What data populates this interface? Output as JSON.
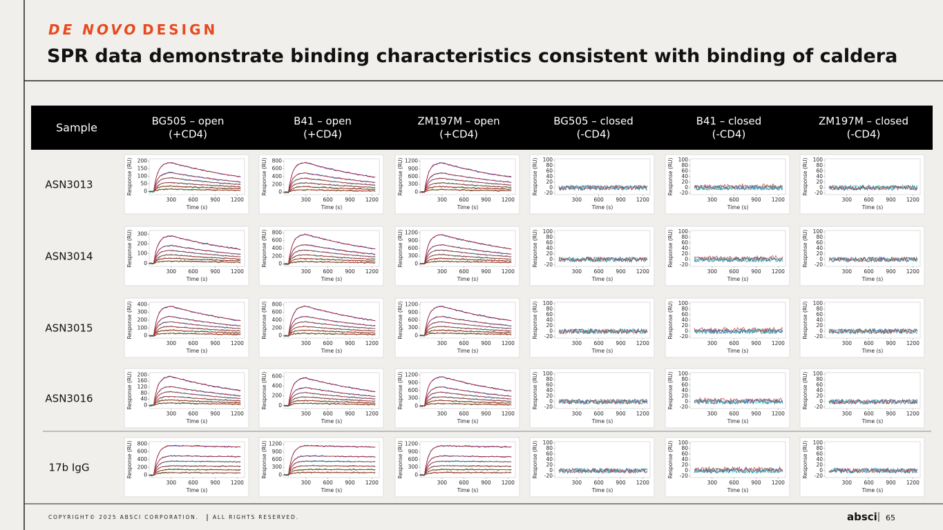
{
  "header": {
    "kicker_italic": "DE NOVO",
    "kicker": "DESIGN",
    "title": "SPR data demonstrate binding characteristics consistent with binding of caldera"
  },
  "table": {
    "corner": "Sample",
    "columns": [
      [
        "BG505 – open",
        "(+CD4)"
      ],
      [
        "B41 – open",
        "(+CD4)"
      ],
      [
        "ZM197M – open",
        "(+CD4)"
      ],
      [
        "BG505 – closed",
        "(-CD4)"
      ],
      [
        "B41 – closed",
        "(-CD4)"
      ],
      [
        "ZM197M – closed",
        "(-CD4)"
      ]
    ],
    "rows": [
      {
        "label": "ASN3013",
        "cells": [
          {
            "ylabel": "Response (RU)",
            "xlabel": "Time (s)",
            "ylim": [
              -20,
              215
            ],
            "yticks": [
              0,
              50,
              100,
              150,
              200
            ],
            "xlim": [
              0,
              1300
            ],
            "xticks": [
              300,
              600,
              900,
              1200
            ]
          },
          {
            "ylabel": "Response (RU)",
            "xlabel": "Time (s)",
            "ylim": [
              -60,
              860
            ],
            "yticks": [
              0,
              200,
              400,
              600,
              800
            ],
            "xlim": [
              0,
              1300
            ],
            "xticks": [
              300,
              600,
              900,
              1200
            ]
          },
          {
            "ylabel": "Response (RU)",
            "xlabel": "Time (s)",
            "ylim": [
              -100,
              1300
            ],
            "yticks": [
              0,
              300,
              600,
              900,
              1200
            ],
            "xlim": [
              0,
              1300
            ],
            "xticks": [
              300,
              600,
              900,
              1200
            ]
          },
          {
            "ylabel": "Response (RU)",
            "xlabel": "Time (s)",
            "ylim": [
              -25,
              105
            ],
            "yticks": [
              -20,
              0,
              20,
              40,
              60,
              80,
              100
            ],
            "xlim": [
              0,
              1300
            ],
            "xticks": [
              300,
              600,
              900,
              1200
            ]
          },
          {
            "ylabel": "Response (RU)",
            "xlabel": "Time (s)",
            "ylim": [
              -25,
              105
            ],
            "yticks": [
              -20,
              0,
              20,
              40,
              60,
              80,
              100
            ],
            "xlim": [
              0,
              1300
            ],
            "xticks": [
              300,
              600,
              900,
              1200
            ]
          },
          {
            "ylabel": "Response (RU)",
            "xlabel": "Time (s)",
            "ylim": [
              -25,
              105
            ],
            "yticks": [
              -20,
              0,
              20,
              40,
              60,
              80,
              100
            ],
            "xlim": [
              0,
              1300
            ],
            "xticks": [
              300,
              600,
              900,
              1200
            ]
          }
        ]
      },
      {
        "label": "ASN3014",
        "cells": [
          {
            "ylabel": "Response (RU)",
            "xlabel": "Time (s)",
            "ylim": [
              -30,
              340
            ],
            "yticks": [
              0,
              100,
              200,
              300
            ],
            "xlim": [
              0,
              1300
            ],
            "xticks": [
              300,
              600,
              900,
              1200
            ]
          },
          {
            "ylabel": "Response (RU)",
            "xlabel": "Time (s)",
            "ylim": [
              -60,
              860
            ],
            "yticks": [
              0,
              200,
              400,
              600,
              800
            ],
            "xlim": [
              0,
              1300
            ],
            "xticks": [
              300,
              600,
              900,
              1200
            ]
          },
          {
            "ylabel": "Response (RU)",
            "xlabel": "Time (s)",
            "ylim": [
              -100,
              1300
            ],
            "yticks": [
              0,
              300,
              600,
              900,
              1200
            ],
            "xlim": [
              0,
              1300
            ],
            "xticks": [
              300,
              600,
              900,
              1200
            ]
          },
          {
            "ylabel": "Response (RU)",
            "xlabel": "Time (s)",
            "ylim": [
              -25,
              105
            ],
            "yticks": [
              -20,
              0,
              20,
              40,
              60,
              80,
              100
            ],
            "xlim": [
              0,
              1300
            ],
            "xticks": [
              300,
              600,
              900,
              1200
            ]
          },
          {
            "ylabel": "Response (RU)",
            "xlabel": "Time (s)",
            "ylim": [
              -25,
              105
            ],
            "yticks": [
              -20,
              0,
              20,
              40,
              60,
              80,
              100
            ],
            "xlim": [
              0,
              1300
            ],
            "xticks": [
              300,
              600,
              900,
              1200
            ]
          },
          {
            "ylabel": "Response (RU)",
            "xlabel": "Time (s)",
            "ylim": [
              -25,
              105
            ],
            "yticks": [
              -20,
              0,
              20,
              40,
              60,
              80,
              100
            ],
            "xlim": [
              0,
              1300
            ],
            "xticks": [
              300,
              600,
              900,
              1200
            ]
          }
        ]
      },
      {
        "label": "ASN3015",
        "cells": [
          {
            "ylabel": "Response (RU)",
            "xlabel": "Time (s)",
            "ylim": [
              -30,
              430
            ],
            "yticks": [
              0,
              100,
              200,
              300,
              400
            ],
            "xlim": [
              0,
              1300
            ],
            "xticks": [
              300,
              600,
              900,
              1200
            ]
          },
          {
            "ylabel": "Response (RU)",
            "xlabel": "Time (s)",
            "ylim": [
              -60,
              860
            ],
            "yticks": [
              0,
              200,
              400,
              600,
              800
            ],
            "xlim": [
              0,
              1300
            ],
            "xticks": [
              300,
              600,
              900,
              1200
            ]
          },
          {
            "ylabel": "Response (RU)",
            "xlabel": "Time (s)",
            "ylim": [
              -100,
              1300
            ],
            "yticks": [
              0,
              300,
              600,
              900,
              1200
            ],
            "xlim": [
              0,
              1300
            ],
            "xticks": [
              300,
              600,
              900,
              1200
            ]
          },
          {
            "ylabel": "Response (RU)",
            "xlabel": "Time (s)",
            "ylim": [
              -25,
              105
            ],
            "yticks": [
              -20,
              0,
              20,
              40,
              60,
              80,
              100
            ],
            "xlim": [
              0,
              1300
            ],
            "xticks": [
              300,
              600,
              900,
              1200
            ]
          },
          {
            "ylabel": "Response (RU)",
            "xlabel": "Time (s)",
            "ylim": [
              -25,
              105
            ],
            "yticks": [
              -20,
              0,
              20,
              40,
              60,
              80,
              100
            ],
            "xlim": [
              0,
              1300
            ],
            "xticks": [
              300,
              600,
              900,
              1200
            ]
          },
          {
            "ylabel": "Response (RU)",
            "xlabel": "Time (s)",
            "ylim": [
              -25,
              105
            ],
            "yticks": [
              -20,
              0,
              20,
              40,
              60,
              80,
              100
            ],
            "xlim": [
              0,
              1300
            ],
            "xticks": [
              300,
              600,
              900,
              1200
            ]
          }
        ]
      },
      {
        "label": "ASN3016",
        "cells": [
          {
            "ylabel": "Response (RU)",
            "xlabel": "Time (s)",
            "ylim": [
              -20,
              215
            ],
            "yticks": [
              0,
              40,
              80,
              120,
              160,
              200
            ],
            "xlim": [
              0,
              1300
            ],
            "xticks": [
              300,
              600,
              900,
              1200
            ]
          },
          {
            "ylabel": "Response (RU)",
            "xlabel": "Time (s)",
            "ylim": [
              -60,
              680
            ],
            "yticks": [
              0,
              200,
              400,
              600
            ],
            "xlim": [
              0,
              1300
            ],
            "xticks": [
              300,
              600,
              900,
              1200
            ]
          },
          {
            "ylabel": "Response (RU)",
            "xlabel": "Time (s)",
            "ylim": [
              -100,
              1300
            ],
            "yticks": [
              0,
              300,
              600,
              900,
              1200
            ],
            "xlim": [
              0,
              1300
            ],
            "xticks": [
              300,
              600,
              900,
              1200
            ]
          },
          {
            "ylabel": "Response (RU)",
            "xlabel": "Time (s)",
            "ylim": [
              -25,
              105
            ],
            "yticks": [
              -20,
              0,
              20,
              40,
              60,
              80,
              100
            ],
            "xlim": [
              0,
              1300
            ],
            "xticks": [
              300,
              600,
              900,
              1200
            ]
          },
          {
            "ylabel": "Response (RU)",
            "xlabel": "Time (s)",
            "ylim": [
              -25,
              105
            ],
            "yticks": [
              -20,
              0,
              20,
              40,
              60,
              80,
              100
            ],
            "xlim": [
              0,
              1300
            ],
            "xticks": [
              300,
              600,
              900,
              1200
            ]
          },
          {
            "ylabel": "Response (RU)",
            "xlabel": "Time (s)",
            "ylim": [
              -25,
              105
            ],
            "yticks": [
              -20,
              0,
              20,
              40,
              60,
              80,
              100
            ],
            "xlim": [
              0,
              1300
            ],
            "xticks": [
              300,
              600,
              900,
              1200
            ]
          }
        ]
      },
      {
        "label": "17b IgG",
        "cells": [
          {
            "ylabel": "Response (RU)",
            "xlabel": "Time (s)",
            "ylim": [
              -60,
              860
            ],
            "yticks": [
              0,
              200,
              400,
              600,
              800
            ],
            "xlim": [
              0,
              1300
            ],
            "xticks": [
              300,
              600,
              900,
              1200
            ]
          },
          {
            "ylabel": "Response (RU)",
            "xlabel": "Time (s)",
            "ylim": [
              -100,
              1300
            ],
            "yticks": [
              0,
              300,
              600,
              900,
              1200
            ],
            "xlim": [
              0,
              1300
            ],
            "xticks": [
              300,
              600,
              900,
              1200
            ]
          },
          {
            "ylabel": "Response (RU)",
            "xlabel": "Time (s)",
            "ylim": [
              -100,
              1300
            ],
            "yticks": [
              0,
              300,
              600,
              900,
              1200
            ],
            "xlim": [
              0,
              1300
            ],
            "xticks": [
              300,
              600,
              900,
              1200
            ]
          },
          {
            "ylabel": "Response (RU)",
            "xlabel": "Time (s)",
            "ylim": [
              -25,
              105
            ],
            "yticks": [
              -20,
              0,
              20,
              40,
              60,
              80,
              100
            ],
            "xlim": [
              0,
              1300
            ],
            "xticks": [
              300,
              600,
              900,
              1200
            ]
          },
          {
            "ylabel": "Response (RU)",
            "xlabel": "Time (s)",
            "ylim": [
              -25,
              105
            ],
            "yticks": [
              -20,
              0,
              20,
              40,
              60,
              80,
              100
            ],
            "xlim": [
              0,
              1300
            ],
            "xticks": [
              300,
              600,
              900,
              1200
            ]
          },
          {
            "ylabel": "Response (RU)",
            "xlabel": "Time (s)",
            "ylim": [
              -25,
              105
            ],
            "yticks": [
              -20,
              0,
              20,
              40,
              60,
              80,
              100
            ],
            "xlim": [
              0,
              1300
            ],
            "xticks": [
              300,
              600,
              900,
              1200
            ]
          }
        ]
      }
    ]
  },
  "footer": {
    "copyright": "COPYRIGHT© 2025 ABSCI CORPORATION.",
    "rights": "ALL RIGHTS RESERVED.",
    "brand": "absci",
    "page": "65"
  }
}
